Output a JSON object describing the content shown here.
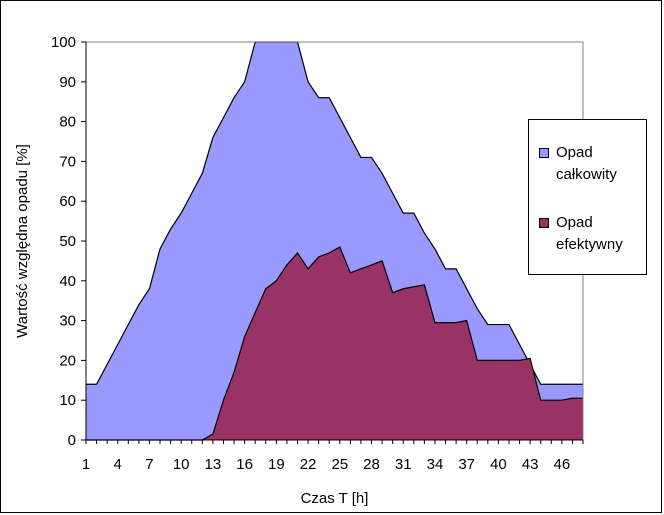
{
  "chart_data": {
    "type": "area",
    "xlabel": "Czas T [h]",
    "ylabel": "Wartość względna opadu [%]",
    "ylim": [
      0,
      100
    ],
    "yticks": [
      0,
      10,
      20,
      30,
      40,
      50,
      60,
      70,
      80,
      90,
      100
    ],
    "x": [
      1,
      2,
      3,
      4,
      5,
      6,
      7,
      8,
      9,
      10,
      11,
      12,
      13,
      14,
      15,
      16,
      17,
      18,
      19,
      20,
      21,
      22,
      23,
      24,
      25,
      26,
      27,
      28,
      29,
      30,
      31,
      32,
      33,
      34,
      35,
      36,
      37,
      38,
      39,
      40,
      41,
      42,
      43,
      44,
      45,
      46,
      47,
      48
    ],
    "xtick_labels": [
      1,
      4,
      7,
      10,
      13,
      16,
      19,
      22,
      25,
      28,
      31,
      34,
      37,
      40,
      43,
      46
    ],
    "grid": false,
    "legend_position": "right",
    "series": [
      {
        "name": "Opad całkowity",
        "color": "#9999FF",
        "values": [
          14,
          14,
          19,
          24,
          29,
          34,
          38,
          48,
          53,
          57,
          62,
          67,
          76,
          81,
          86,
          90,
          100,
          100,
          100,
          100,
          100,
          90,
          86,
          86,
          81,
          76,
          71,
          71,
          67,
          62,
          57,
          57,
          52,
          48,
          43,
          43,
          38,
          33,
          29,
          29,
          29,
          24,
          19,
          14,
          14,
          14,
          14,
          14
        ]
      },
      {
        "name": "Opad efektywny",
        "color": "#993366",
        "values": [
          0,
          0,
          0,
          0,
          0,
          0,
          0,
          0,
          0,
          0,
          0,
          0,
          1.5,
          10,
          17,
          26,
          32,
          38,
          40,
          44,
          47,
          43,
          46,
          47,
          48.5,
          42,
          43,
          44,
          45,
          37,
          38,
          38.5,
          39,
          29.5,
          29.5,
          29.5,
          30,
          20,
          20,
          20,
          20,
          20,
          20.5,
          10,
          10,
          10,
          10.5,
          10.5
        ]
      }
    ]
  }
}
